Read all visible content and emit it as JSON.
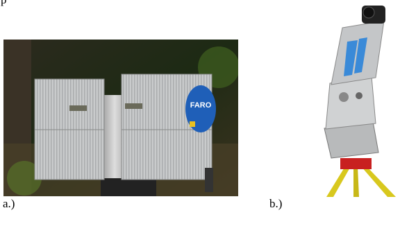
{
  "top_fragment": "p",
  "figure": {
    "panels": [
      {
        "label": "a.)",
        "logo": "FARO"
      },
      {
        "label": "b.)"
      }
    ]
  }
}
